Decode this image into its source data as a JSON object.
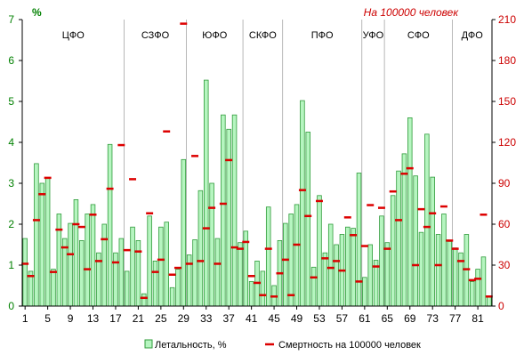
{
  "chart_data": {
    "type": "bar",
    "left_axis_unit": "%",
    "right_axis_unit": "На 100000 человек",
    "ylim_left": [
      0,
      7
    ],
    "ylim_right": [
      0,
      210
    ],
    "left_ticks": [
      "0",
      "1",
      "2",
      "3",
      "4",
      "5",
      "6",
      "7"
    ],
    "right_ticks": [
      "0",
      "30",
      "60",
      "90",
      "120",
      "150",
      "180",
      "210"
    ],
    "x_ticks": [
      "1",
      "5",
      "9",
      "13",
      "17",
      "21",
      "25",
      "29",
      "33",
      "37",
      "41",
      "45",
      "49",
      "53",
      "57",
      "61",
      "65",
      "69",
      "73",
      "77",
      "81"
    ],
    "grid": false,
    "legend_position": "bottom",
    "regions": [
      {
        "label": "ЦФО",
        "from": 1,
        "to": 18
      },
      {
        "label": "СЗФО",
        "from": 19,
        "to": 29
      },
      {
        "label": "ЮФО",
        "from": 30,
        "to": 39
      },
      {
        "label": "СКФО",
        "from": 40,
        "to": 46
      },
      {
        "label": "ПФО",
        "from": 47,
        "to": 60
      },
      {
        "label": "УФО",
        "from": 61,
        "to": 64
      },
      {
        "label": "СФО",
        "from": 65,
        "to": 76
      },
      {
        "label": "ДФО",
        "from": 77,
        "to": 83
      }
    ],
    "series": [
      {
        "name": "Летальность, %",
        "axis": "left",
        "color": "#b6f5c0",
        "edge": "#2f9b3a",
        "values": [
          1.65,
          0.85,
          3.48,
          3.0,
          3.12,
          0.9,
          2.25,
          1.65,
          2.02,
          2.6,
          1.6,
          2.25,
          2.48,
          1.3,
          2.0,
          3.95,
          1.3,
          1.65,
          0.85,
          1.93,
          1.6,
          0.3,
          2.2,
          1.1,
          1.93,
          2.05,
          0.45,
          0.9,
          3.58,
          1.25,
          1.62,
          2.82,
          5.52,
          3.0,
          1.65,
          4.67,
          4.32,
          4.67,
          1.55,
          1.83,
          0.6,
          1.1,
          0.85,
          2.42,
          0.5,
          1.6,
          2.02,
          2.25,
          2.48,
          5.02,
          4.25,
          0.95,
          2.7,
          1.3,
          2.0,
          1.5,
          1.75,
          1.93,
          1.9,
          3.25,
          0.7,
          1.5,
          1.12,
          2.2,
          1.55,
          2.7,
          3.3,
          3.72,
          4.6,
          3.18,
          1.8,
          4.2,
          3.15,
          1.75,
          2.25,
          1.58,
          1.42,
          1.3,
          1.75,
          0.6,
          0.9,
          1.2,
          0.25
        ]
      },
      {
        "name": "Смертность на 100000 человек",
        "axis": "right",
        "color": "#dd0000",
        "values": [
          31,
          22,
          63,
          82,
          94,
          25,
          56,
          43,
          38,
          60,
          58,
          27,
          67,
          33,
          49,
          86,
          32,
          118,
          41,
          93,
          40,
          6,
          68,
          25,
          34,
          128,
          23,
          28,
          207,
          31,
          110,
          33,
          57,
          72,
          31,
          75,
          107,
          43,
          42,
          47,
          22,
          17,
          8,
          42,
          7,
          24,
          34,
          8,
          45,
          85,
          66,
          21,
          77,
          35,
          28,
          33,
          26,
          65,
          52,
          18,
          44,
          74,
          29,
          72,
          42,
          84,
          63,
          97,
          101,
          30,
          71,
          58,
          68,
          30,
          73,
          48,
          42,
          33,
          27,
          19,
          20,
          67,
          7
        ]
      }
    ]
  }
}
